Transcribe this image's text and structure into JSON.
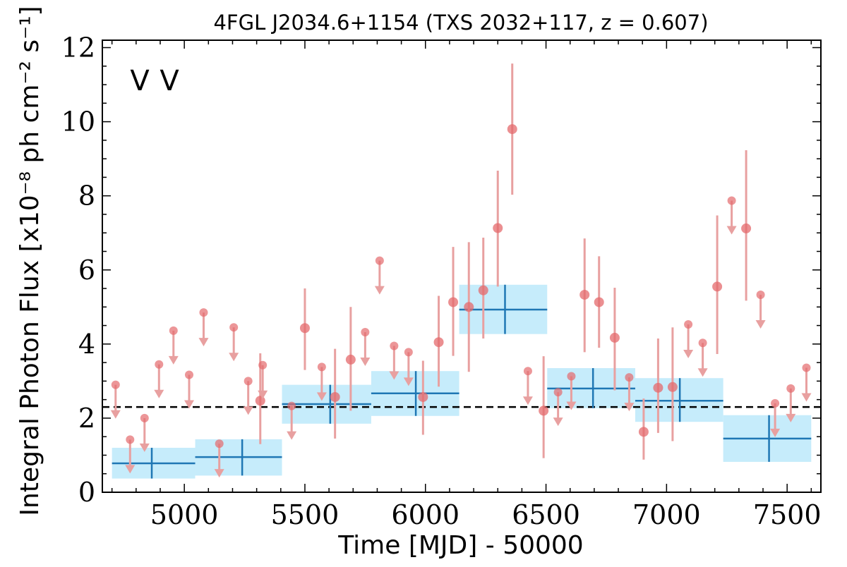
{
  "chart_data": {
    "type": "scatter",
    "title": "4FGL J2034.6+1154 (TXS 2032+117, z = 0.607)",
    "xlabel": "Time [MJD] - 50000",
    "ylabel": "Integral Photon Flux [x10⁻⁸ ph cm⁻² s⁻¹]",
    "xlim": [
      4660,
      7640
    ],
    "ylim": [
      0,
      12.2
    ],
    "x_ticks": [
      5000,
      5500,
      6000,
      6500,
      7000,
      7500
    ],
    "y_ticks": [
      0,
      2,
      4,
      6,
      8,
      10,
      12
    ],
    "grid": false,
    "legend_position": "top-left",
    "colors": {
      "long_bins": "#1f77b4",
      "long_bin_band": "#c6ecfb",
      "short_bins": "#d62728",
      "short_bins_marker": "#e46a6c",
      "short_bins_errorbar": "#e8a0a0",
      "mean_line": "#000000"
    },
    "legend": {
      "markers": [
        {
          "symbol": "V",
          "color": "#1f77b4"
        },
        {
          "symbol": "V",
          "color": "#d62728"
        }
      ]
    },
    "mean_flux": 2.3,
    "long_bins": [
      {
        "x": 4865,
        "x_lo": 4700,
        "x_hi": 5045,
        "y": 0.78,
        "y_lo": 0.37,
        "y_hi": 1.2
      },
      {
        "x": 5240,
        "x_lo": 5045,
        "x_hi": 5405,
        "y": 0.95,
        "y_lo": 0.45,
        "y_hi": 1.43
      },
      {
        "x": 5605,
        "x_lo": 5405,
        "x_hi": 5775,
        "y": 2.38,
        "y_lo": 1.85,
        "y_hi": 2.9
      },
      {
        "x": 5960,
        "x_lo": 5775,
        "x_hi": 6140,
        "y": 2.67,
        "y_lo": 2.06,
        "y_hi": 3.27
      },
      {
        "x": 6330,
        "x_lo": 6140,
        "x_hi": 6505,
        "y": 4.93,
        "y_lo": 4.27,
        "y_hi": 5.6
      },
      {
        "x": 6695,
        "x_lo": 6505,
        "x_hi": 6870,
        "y": 2.8,
        "y_lo": 2.27,
        "y_hi": 3.35
      },
      {
        "x": 7055,
        "x_lo": 6870,
        "x_hi": 7235,
        "y": 2.47,
        "y_lo": 1.9,
        "y_hi": 3.08
      },
      {
        "x": 7425,
        "x_lo": 7235,
        "x_hi": 7600,
        "y": 1.45,
        "y_lo": 0.82,
        "y_hi": 2.08
      }
    ],
    "short_bins_detections": [
      {
        "x": 5315,
        "y": 2.47,
        "y_lo": 1.3,
        "y_hi": 3.75
      },
      {
        "x": 5500,
        "y": 4.43,
        "y_lo": 3.3,
        "y_hi": 5.5
      },
      {
        "x": 5625,
        "y": 2.57,
        "y_lo": 1.45,
        "y_hi": 3.87
      },
      {
        "x": 5690,
        "y": 3.58,
        "y_lo": 2.2,
        "y_hi": 5.0
      },
      {
        "x": 5990,
        "y": 2.57,
        "y_lo": 1.55,
        "y_hi": 3.55
      },
      {
        "x": 6055,
        "y": 4.05,
        "y_lo": 2.85,
        "y_hi": 5.3
      },
      {
        "x": 6115,
        "y": 5.13,
        "y_lo": 3.68,
        "y_hi": 6.62
      },
      {
        "x": 6180,
        "y": 5.0,
        "y_lo": 3.25,
        "y_hi": 6.75
      },
      {
        "x": 6240,
        "y": 5.45,
        "y_lo": 4.15,
        "y_hi": 6.87
      },
      {
        "x": 6300,
        "y": 7.13,
        "y_lo": 5.55,
        "y_hi": 8.68
      },
      {
        "x": 6360,
        "y": 9.8,
        "y_lo": 8.03,
        "y_hi": 11.57
      },
      {
        "x": 6490,
        "y": 2.2,
        "y_lo": 0.92,
        "y_hi": 3.67
      },
      {
        "x": 6660,
        "y": 5.33,
        "y_lo": 3.78,
        "y_hi": 6.85
      },
      {
        "x": 6720,
        "y": 5.13,
        "y_lo": 3.9,
        "y_hi": 6.37
      },
      {
        "x": 6785,
        "y": 4.17,
        "y_lo": 2.75,
        "y_hi": 5.52
      },
      {
        "x": 6905,
        "y": 1.63,
        "y_lo": 0.88,
        "y_hi": 2.53
      },
      {
        "x": 6965,
        "y": 2.82,
        "y_lo": 1.6,
        "y_hi": 4.15
      },
      {
        "x": 7025,
        "y": 2.84,
        "y_lo": 1.38,
        "y_hi": 4.45
      },
      {
        "x": 7210,
        "y": 5.55,
        "y_lo": 3.73,
        "y_hi": 7.47
      },
      {
        "x": 7330,
        "y": 7.12,
        "y_lo": 5.17,
        "y_hi": 9.23
      }
    ],
    "short_bins_upper_limits": [
      {
        "x": 4715,
        "y": 2.9
      },
      {
        "x": 4775,
        "y": 1.42
      },
      {
        "x": 4835,
        "y": 2.0
      },
      {
        "x": 4895,
        "y": 3.45
      },
      {
        "x": 4955,
        "y": 4.36
      },
      {
        "x": 5020,
        "y": 3.17
      },
      {
        "x": 5080,
        "y": 4.85
      },
      {
        "x": 5145,
        "y": 1.31
      },
      {
        "x": 5205,
        "y": 4.45
      },
      {
        "x": 5265,
        "y": 3.0
      },
      {
        "x": 5325,
        "y": 3.43
      },
      {
        "x": 5445,
        "y": 2.33
      },
      {
        "x": 5570,
        "y": 3.38
      },
      {
        "x": 5750,
        "y": 4.32
      },
      {
        "x": 5810,
        "y": 6.25
      },
      {
        "x": 5870,
        "y": 3.95
      },
      {
        "x": 5930,
        "y": 3.78
      },
      {
        "x": 6425,
        "y": 3.27
      },
      {
        "x": 6550,
        "y": 2.7
      },
      {
        "x": 6605,
        "y": 3.13
      },
      {
        "x": 6845,
        "y": 3.1
      },
      {
        "x": 7090,
        "y": 4.53
      },
      {
        "x": 7150,
        "y": 4.03
      },
      {
        "x": 7270,
        "y": 7.87
      },
      {
        "x": 7390,
        "y": 5.33
      },
      {
        "x": 7450,
        "y": 2.4
      },
      {
        "x": 7515,
        "y": 2.8
      },
      {
        "x": 7580,
        "y": 3.36
      }
    ]
  }
}
